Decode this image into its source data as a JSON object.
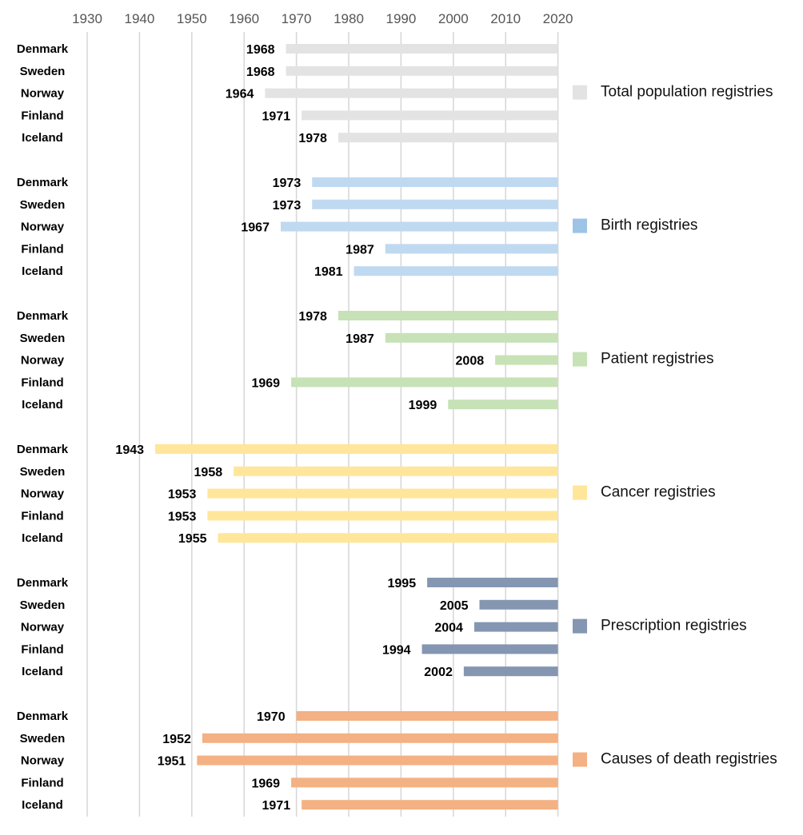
{
  "chart_data": {
    "type": "bar",
    "orientation": "horizontal",
    "x_ticks": [
      1930,
      1940,
      1950,
      1960,
      1970,
      1980,
      1990,
      2000,
      2010,
      2020
    ],
    "xlim": [
      1930,
      2020
    ],
    "grid": true,
    "legend_placement": "right",
    "groups": [
      {
        "name": "Total population registries",
        "color": "#e3e3e3",
        "end": 2020,
        "rows": [
          {
            "country": "Denmark",
            "start": 1968
          },
          {
            "country": "Sweden",
            "start": 1968
          },
          {
            "country": "Norway",
            "start": 1964
          },
          {
            "country": "Finland",
            "start": 1971
          },
          {
            "country": "Iceland",
            "start": 1978
          }
        ]
      },
      {
        "name": "Birth registries",
        "color": "#bfd9f1",
        "legend_color": "#9dc3e6",
        "end": 2020,
        "rows": [
          {
            "country": "Denmark",
            "start": 1973
          },
          {
            "country": "Sweden",
            "start": 1973
          },
          {
            "country": "Norway",
            "start": 1967
          },
          {
            "country": "Finland",
            "start": 1987
          },
          {
            "country": "Iceland",
            "start": 1981
          }
        ]
      },
      {
        "name": "Patient registries",
        "color": "#c7e2b6",
        "end": 2020,
        "rows": [
          {
            "country": "Denmark",
            "start": 1978
          },
          {
            "country": "Sweden",
            "start": 1987
          },
          {
            "country": "Norway",
            "start": 2008
          },
          {
            "country": "Finland",
            "start": 1969
          },
          {
            "country": "Iceland",
            "start": 1999
          }
        ]
      },
      {
        "name": "Cancer registries",
        "color": "#ffe69a",
        "end": 2020,
        "rows": [
          {
            "country": "Denmark",
            "start": 1943
          },
          {
            "country": "Sweden",
            "start": 1958
          },
          {
            "country": "Norway",
            "start": 1953
          },
          {
            "country": "Finland",
            "start": 1953
          },
          {
            "country": "Iceland",
            "start": 1955
          }
        ]
      },
      {
        "name": "Prescription registries",
        "color": "#8496b1",
        "end": 2020,
        "rows": [
          {
            "country": "Denmark",
            "start": 1995
          },
          {
            "country": "Sweden",
            "start": 2005
          },
          {
            "country": "Norway",
            "start": 2004
          },
          {
            "country": "Finland",
            "start": 1994
          },
          {
            "country": "Iceland",
            "start": 2002
          }
        ]
      },
      {
        "name": "Causes of death registries",
        "color": "#f4b183",
        "end": 2020,
        "rows": [
          {
            "country": "Denmark",
            "start": 1970
          },
          {
            "country": "Sweden",
            "start": 1952
          },
          {
            "country": "Norway",
            "start": 1951
          },
          {
            "country": "Finland",
            "start": 1969
          },
          {
            "country": "Iceland",
            "start": 1971
          }
        ]
      }
    ]
  }
}
